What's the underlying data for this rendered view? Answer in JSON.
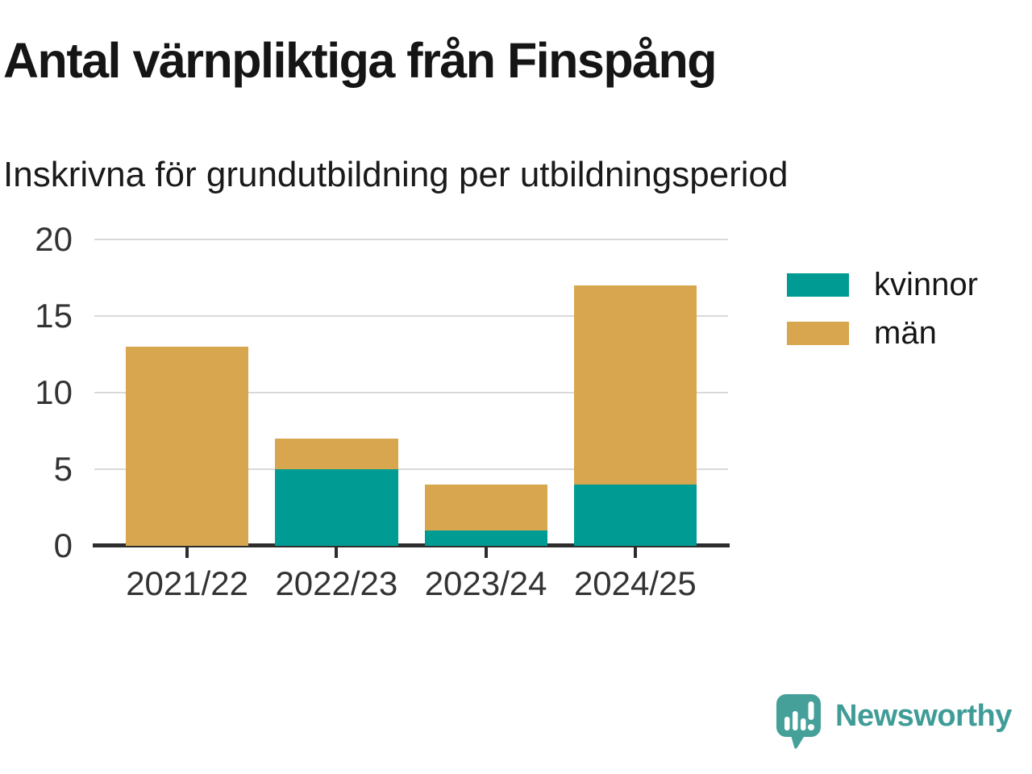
{
  "header": {
    "title": "Antal värnpliktiga från Finspång",
    "subtitle": "Inskrivna för grundutbildning per utbildningsperiod"
  },
  "chart_data": {
    "type": "bar",
    "stacked": true,
    "title": "Antal värnpliktiga från Finspång",
    "subtitle": "Inskrivna för grundutbildning per utbildningsperiod",
    "categories": [
      "2021/22",
      "2022/23",
      "2023/24",
      "2024/25"
    ],
    "series": [
      {
        "name": "kvinnor",
        "color": "#009C94",
        "values": [
          0,
          5,
          1,
          4
        ]
      },
      {
        "name": "män",
        "color": "#D7A64E",
        "values": [
          13,
          2,
          3,
          13
        ]
      }
    ],
    "totals": [
      13,
      7,
      4,
      17
    ],
    "xlabel": "",
    "ylabel": "",
    "ylim": [
      0,
      20
    ],
    "yticks": [
      0,
      5,
      10,
      15,
      20
    ],
    "grid": "horizontal",
    "legend_position": "right",
    "axis_color": "#2d2d2d",
    "gridline_color": "#d9d9d9"
  },
  "footer": {
    "brand": "Newsworthy",
    "brand_color": "#3F9C97",
    "logo_icon_color": "#45A09A",
    "logo_icon": "bar-chart-speech-bubble"
  }
}
